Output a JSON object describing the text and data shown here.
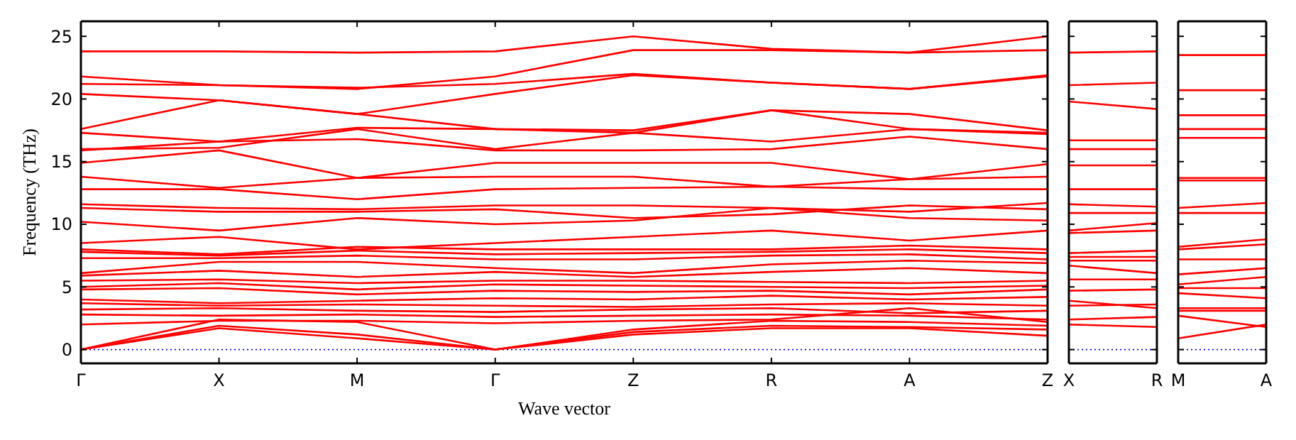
{
  "chart_data": [
    {
      "type": "line",
      "xlabel": "Wave vector",
      "ylabel": "Frequency (THz)",
      "categories": [
        "Γ",
        "X",
        "M",
        "Γ",
        "Z",
        "R",
        "A",
        "Z"
      ],
      "ylim": [
        -1.1,
        26.2
      ],
      "yticks": [
        0,
        5,
        10,
        15,
        20,
        25
      ],
      "line_style": "solid",
      "ref_lines": [
        {
          "axis": "y",
          "value": 0,
          "color": "#0000ff",
          "line_style": "dotted"
        }
      ],
      "series": [
        {
          "color": "#ff0000",
          "values": [
            23.8,
            23.8,
            23.7,
            23.8,
            25.0,
            24.0,
            23.7,
            25.0
          ]
        },
        {
          "color": "#ff0000",
          "values": [
            21.8,
            21.1,
            20.8,
            21.8,
            23.9,
            23.9,
            23.7,
            23.9
          ]
        },
        {
          "color": "#ff0000",
          "values": [
            21.2,
            21.1,
            20.9,
            21.2,
            22.0,
            21.3,
            20.8,
            21.9
          ]
        },
        {
          "color": "#ff0000",
          "values": [
            20.4,
            19.9,
            18.8,
            20.4,
            21.9,
            21.3,
            20.8,
            21.8
          ]
        },
        {
          "color": "#ff0000",
          "values": [
            17.6,
            19.9,
            18.8,
            17.6,
            17.5,
            19.1,
            18.8,
            17.5
          ]
        },
        {
          "color": "#ff0000",
          "values": [
            17.3,
            16.6,
            17.7,
            17.6,
            17.3,
            19.1,
            17.6,
            17.3
          ]
        },
        {
          "color": "#ff0000",
          "values": [
            16.0,
            16.1,
            17.6,
            16.0,
            17.3,
            16.6,
            17.6,
            17.2
          ]
        },
        {
          "color": "#ff0000",
          "values": [
            15.9,
            16.6,
            16.8,
            15.9,
            15.9,
            16.0,
            17.0,
            16.0
          ]
        },
        {
          "color": "#ff0000",
          "values": [
            14.9,
            15.9,
            13.7,
            14.9,
            14.9,
            14.9,
            13.6,
            14.8
          ]
        },
        {
          "color": "#ff0000",
          "values": [
            13.8,
            12.9,
            13.7,
            13.8,
            13.8,
            13.0,
            13.6,
            13.8
          ]
        },
        {
          "color": "#ff0000",
          "values": [
            12.8,
            12.8,
            12.0,
            12.8,
            12.9,
            13.0,
            12.8,
            12.8
          ]
        },
        {
          "color": "#ff0000",
          "values": [
            11.6,
            11.3,
            11.2,
            11.5,
            11.5,
            11.3,
            11.0,
            11.7
          ]
        },
        {
          "color": "#ff0000",
          "values": [
            11.3,
            11.0,
            11.0,
            11.2,
            10.5,
            10.8,
            11.5,
            11.2
          ]
        },
        {
          "color": "#ff0000",
          "values": [
            10.2,
            9.5,
            10.5,
            10.0,
            10.3,
            11.3,
            10.5,
            10.3
          ]
        },
        {
          "color": "#ff0000",
          "values": [
            8.5,
            9.0,
            8.0,
            8.5,
            9.0,
            9.5,
            8.7,
            9.5
          ]
        },
        {
          "color": "#ff0000",
          "values": [
            8.0,
            7.6,
            8.2,
            8.0,
            8.0,
            8.0,
            8.3,
            8.0
          ]
        },
        {
          "color": "#ff0000",
          "values": [
            7.8,
            7.5,
            7.9,
            7.6,
            7.7,
            7.8,
            8.0,
            7.7
          ]
        },
        {
          "color": "#ff0000",
          "values": [
            7.3,
            7.3,
            7.5,
            7.2,
            7.2,
            7.5,
            7.6,
            7.2
          ]
        },
        {
          "color": "#ff0000",
          "values": [
            6.1,
            7.0,
            7.0,
            6.5,
            6.1,
            6.8,
            7.1,
            6.9
          ]
        },
        {
          "color": "#ff0000",
          "values": [
            5.9,
            6.3,
            5.8,
            6.2,
            5.8,
            6.2,
            6.5,
            6.1
          ]
        },
        {
          "color": "#ff0000",
          "values": [
            5.5,
            5.6,
            5.3,
            5.5,
            5.5,
            5.4,
            5.3,
            5.5
          ]
        },
        {
          "color": "#ff0000",
          "values": [
            5.0,
            5.3,
            4.8,
            5.2,
            5.1,
            5.0,
            4.9,
            5.1
          ]
        },
        {
          "color": "#ff0000",
          "values": [
            4.8,
            4.9,
            4.4,
            4.7,
            4.6,
            4.7,
            4.4,
            4.8
          ]
        },
        {
          "color": "#ff0000",
          "values": [
            4.0,
            3.7,
            3.9,
            4.1,
            4.0,
            4.3,
            4.0,
            4.2
          ]
        },
        {
          "color": "#ff0000",
          "values": [
            3.7,
            3.5,
            3.6,
            3.5,
            3.4,
            3.6,
            3.7,
            3.5
          ]
        },
        {
          "color": "#ff0000",
          "values": [
            3.2,
            3.3,
            3.1,
            3.0,
            3.2,
            3.3,
            2.9,
            3.1
          ]
        },
        {
          "color": "#ff0000",
          "values": [
            2.8,
            2.7,
            2.8,
            2.6,
            2.7,
            2.8,
            2.7,
            2.4
          ]
        },
        {
          "color": "#ff0000",
          "values": [
            2.0,
            2.3,
            2.3,
            2.1,
            2.3,
            2.4,
            3.3,
            2.2
          ]
        },
        {
          "color": "#ff0000",
          "values": [
            0,
            1.9,
            1.2,
            0,
            1.4,
            1.9,
            1.8,
            1.6
          ]
        },
        {
          "color": "#ff0000",
          "values": [
            0,
            1.7,
            0.9,
            0,
            1.2,
            1.7,
            1.7,
            1.1
          ]
        },
        {
          "color": "#ff0000",
          "values": [
            0,
            2.4,
            2.2,
            0,
            1.6,
            2.3,
            2.2,
            1.9
          ]
        }
      ]
    },
    {
      "type": "line",
      "categories": [
        "X",
        "R"
      ],
      "ylim": [
        -1.1,
        26.2
      ],
      "yticks": [
        0,
        5,
        10,
        15,
        20,
        25
      ],
      "tick_labels": "x",
      "line_style": "solid",
      "ref_lines": [
        {
          "axis": "y",
          "value": 0,
          "color": "#0000ff",
          "line_style": "dotted"
        }
      ],
      "series": [
        {
          "color": "#ff0000",
          "values": [
            23.7,
            23.8
          ]
        },
        {
          "color": "#ff0000",
          "values": [
            21.1,
            21.3
          ]
        },
        {
          "color": "#ff0000",
          "values": [
            19.8,
            19.2
          ]
        },
        {
          "color": "#ff0000",
          "values": [
            16.7,
            16.7
          ]
        },
        {
          "color": "#ff0000",
          "values": [
            16.0,
            16.0
          ]
        },
        {
          "color": "#ff0000",
          "values": [
            14.7,
            14.7
          ]
        },
        {
          "color": "#ff0000",
          "values": [
            12.8,
            12.8
          ]
        },
        {
          "color": "#ff0000",
          "values": [
            11.6,
            11.4
          ]
        },
        {
          "color": "#ff0000",
          "values": [
            10.9,
            10.9
          ]
        },
        {
          "color": "#ff0000",
          "values": [
            9.5,
            10.1
          ]
        },
        {
          "color": "#ff0000",
          "values": [
            9.3,
            9.5
          ]
        },
        {
          "color": "#ff0000",
          "values": [
            7.7,
            7.9
          ]
        },
        {
          "color": "#ff0000",
          "values": [
            7.4,
            7.4
          ]
        },
        {
          "color": "#ff0000",
          "values": [
            7.1,
            7.1
          ]
        },
        {
          "color": "#ff0000",
          "values": [
            6.7,
            6.1
          ]
        },
        {
          "color": "#ff0000",
          "values": [
            5.6,
            5.6
          ]
        },
        {
          "color": "#ff0000",
          "values": [
            4.7,
            4.8
          ]
        },
        {
          "color": "#ff0000",
          "values": [
            3.9,
            3.3
          ]
        },
        {
          "color": "#ff0000",
          "values": [
            3.5,
            3.6
          ]
        },
        {
          "color": "#ff0000",
          "values": [
            2.4,
            2.6
          ]
        },
        {
          "color": "#ff0000",
          "values": [
            2.0,
            1.8
          ]
        }
      ]
    },
    {
      "type": "line",
      "categories": [
        "M",
        "A"
      ],
      "ylim": [
        -1.1,
        26.2
      ],
      "yticks": [
        0,
        5,
        10,
        15,
        20,
        25
      ],
      "tick_labels": "x",
      "line_style": "solid",
      "ref_lines": [
        {
          "axis": "y",
          "value": 0,
          "color": "#0000ff",
          "line_style": "dotted"
        }
      ],
      "series": [
        {
          "color": "#ff0000",
          "values": [
            23.5,
            23.5
          ]
        },
        {
          "color": "#ff0000",
          "values": [
            20.7,
            20.7
          ]
        },
        {
          "color": "#ff0000",
          "values": [
            18.7,
            18.7
          ]
        },
        {
          "color": "#ff0000",
          "values": [
            17.6,
            17.6
          ]
        },
        {
          "color": "#ff0000",
          "values": [
            16.9,
            16.9
          ]
        },
        {
          "color": "#ff0000",
          "values": [
            13.7,
            13.7
          ]
        },
        {
          "color": "#ff0000",
          "values": [
            13.5,
            13.5
          ]
        },
        {
          "color": "#ff0000",
          "values": [
            11.3,
            11.7
          ]
        },
        {
          "color": "#ff0000",
          "values": [
            10.9,
            10.9
          ]
        },
        {
          "color": "#ff0000",
          "values": [
            8.2,
            8.8
          ]
        },
        {
          "color": "#ff0000",
          "values": [
            8.0,
            8.4
          ]
        },
        {
          "color": "#ff0000",
          "values": [
            7.2,
            7.2
          ]
        },
        {
          "color": "#ff0000",
          "values": [
            6.0,
            6.5
          ]
        },
        {
          "color": "#ff0000",
          "values": [
            5.2,
            5.8
          ]
        },
        {
          "color": "#ff0000",
          "values": [
            4.9,
            4.9
          ]
        },
        {
          "color": "#ff0000",
          "values": [
            4.5,
            4.1
          ]
        },
        {
          "color": "#ff0000",
          "values": [
            3.3,
            3.3
          ]
        },
        {
          "color": "#ff0000",
          "values": [
            3.1,
            3.1
          ]
        },
        {
          "color": "#ff0000",
          "values": [
            2.7,
            1.8
          ]
        },
        {
          "color": "#ff0000",
          "values": [
            0.9,
            2.0
          ]
        }
      ]
    }
  ]
}
